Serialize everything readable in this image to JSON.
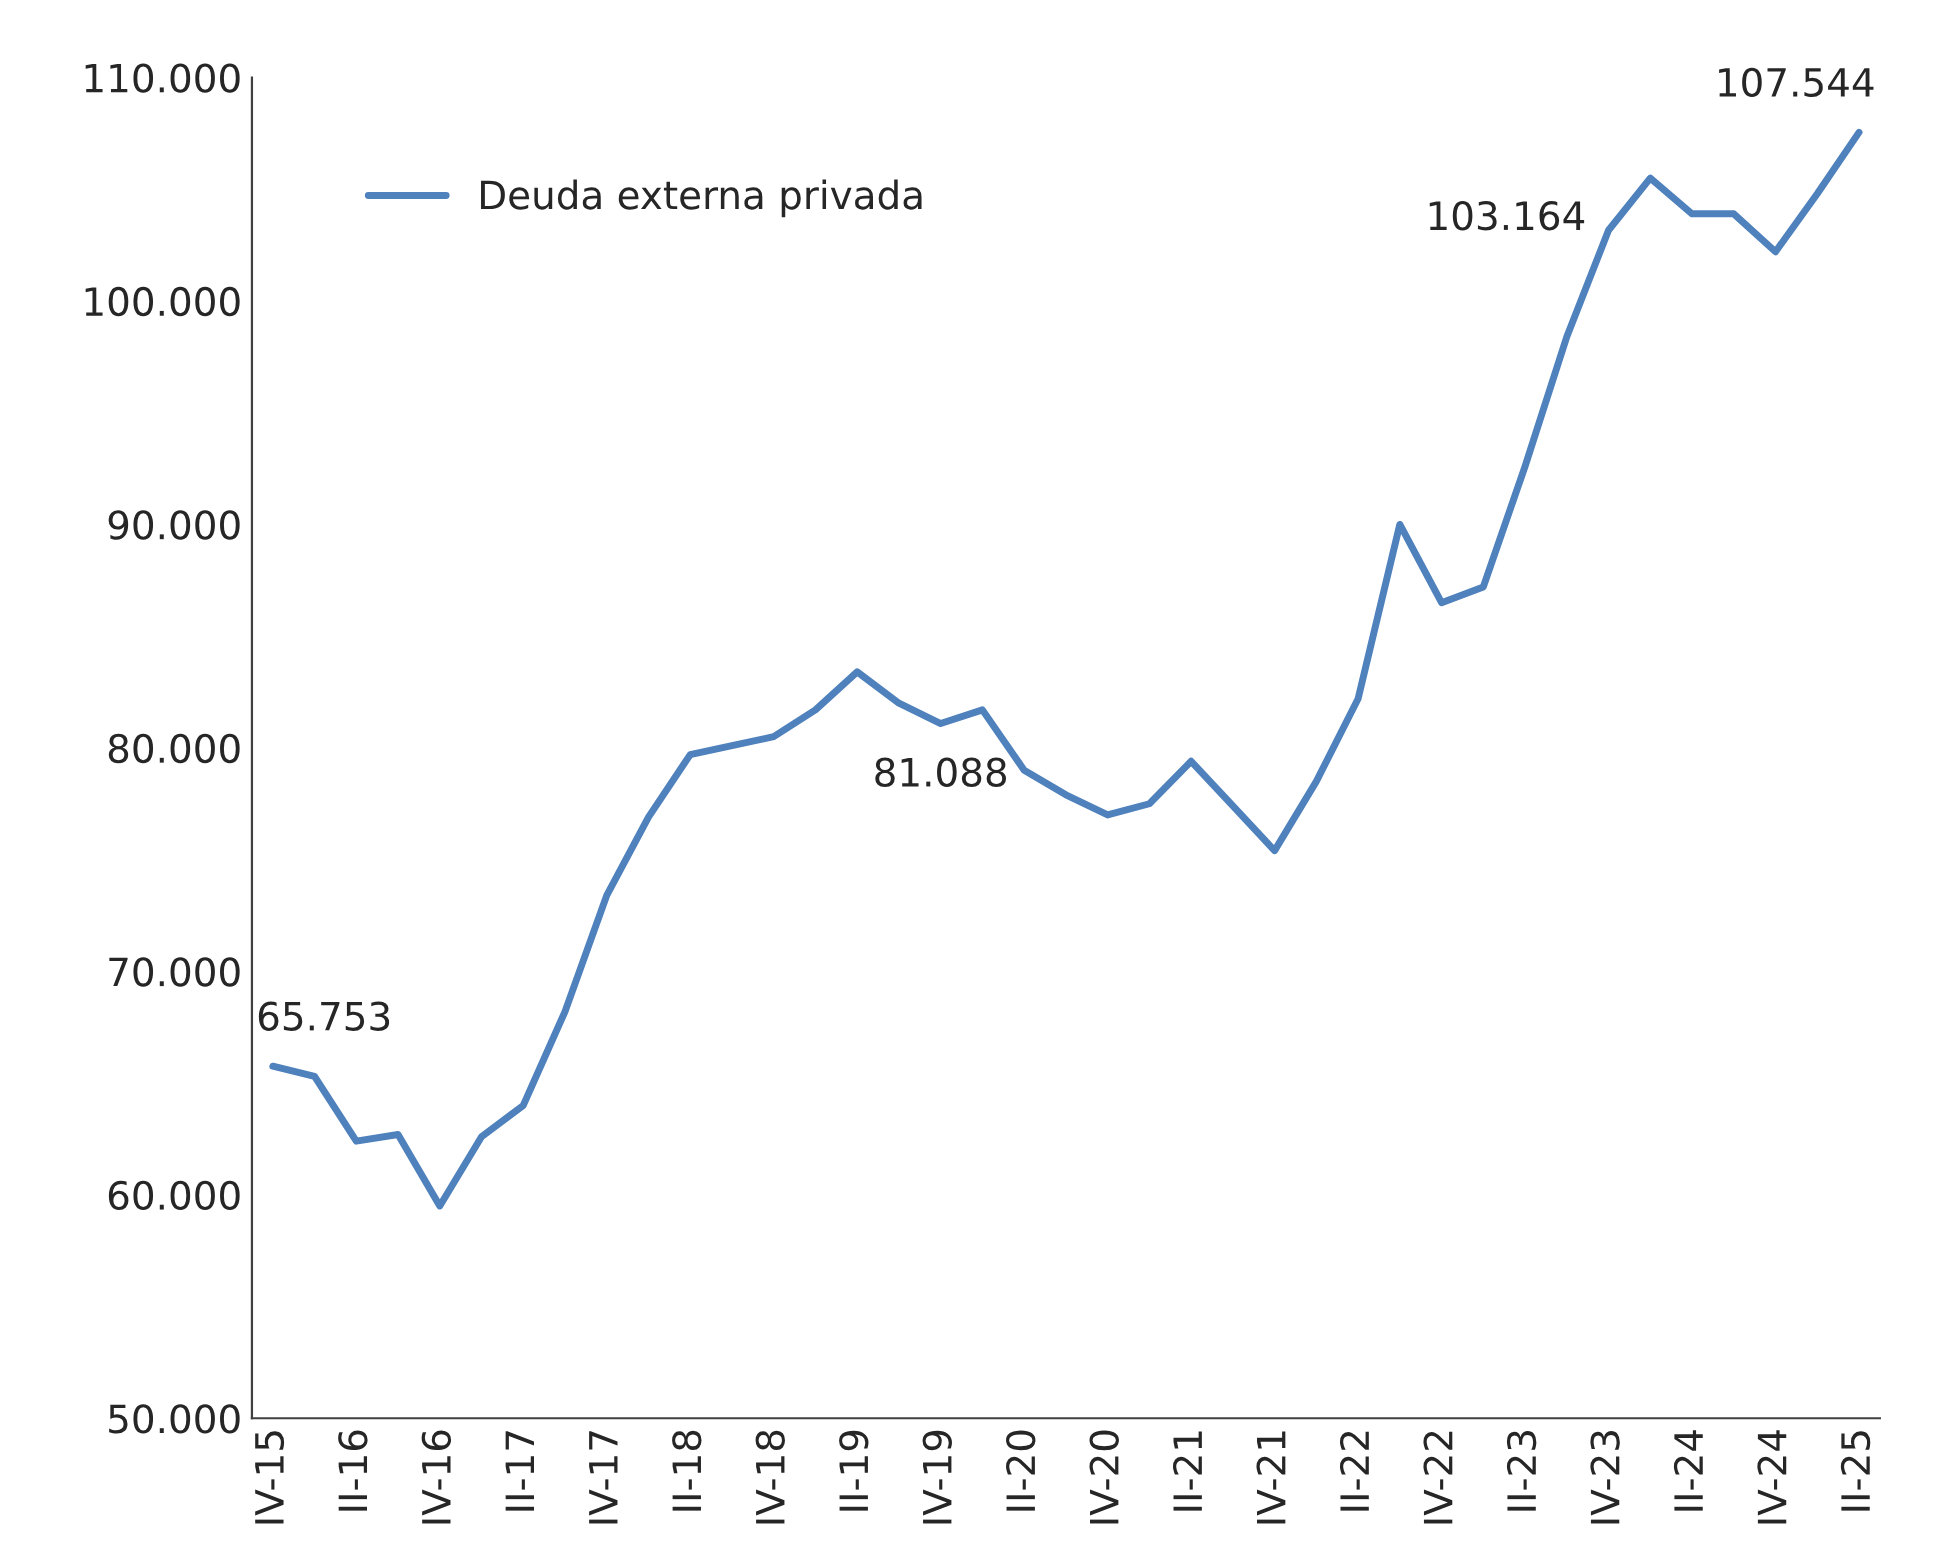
{
  "chart_data": {
    "type": "line",
    "categories": [
      "IV-15",
      null,
      "II-16",
      null,
      "IV-16",
      null,
      "II-17",
      null,
      "IV-17",
      null,
      "II-18",
      null,
      "IV-18",
      null,
      "II-19",
      null,
      "IV-19",
      null,
      "II-20",
      null,
      "IV-20",
      null,
      "II-21",
      null,
      "IV-21",
      null,
      "II-22",
      null,
      "IV-22",
      null,
      "II-23",
      null,
      "IV-23",
      null,
      "II-24",
      null,
      "IV-24",
      null,
      "II-25"
    ],
    "series": [
      {
        "name": "Deuda externa privada",
        "color": "#4f81bd",
        "values": [
          65753,
          65300,
          62400,
          62700,
          59500,
          62600,
          64000,
          68200,
          73400,
          76900,
          79700,
          80100,
          80500,
          81700,
          83400,
          82000,
          81088,
          81700,
          79000,
          77900,
          77000,
          77500,
          79400,
          77400,
          75400,
          78500,
          82200,
          90000,
          86500,
          87200,
          92600,
          98400,
          103164,
          105500,
          103900,
          103900,
          102200,
          104800,
          107544
        ],
        "value_labels": [
          "65.753",
          null,
          null,
          null,
          null,
          null,
          null,
          null,
          null,
          null,
          null,
          null,
          null,
          null,
          null,
          null,
          "81.088",
          null,
          null,
          null,
          null,
          null,
          null,
          null,
          null,
          null,
          null,
          null,
          null,
          null,
          null,
          null,
          "103.164",
          null,
          null,
          null,
          null,
          null,
          "107.544"
        ]
      }
    ],
    "ylim": [
      50000,
      110000
    ],
    "yticks": [
      {
        "value": 50000,
        "label": "50.000"
      },
      {
        "value": 60000,
        "label": "60.000"
      },
      {
        "value": 70000,
        "label": "70.000"
      },
      {
        "value": 80000,
        "label": "80.000"
      },
      {
        "value": 90000,
        "label": "90.000"
      },
      {
        "value": 100000,
        "label": "100.000"
      },
      {
        "value": 110000,
        "label": "110.000"
      }
    ],
    "legend": "top left",
    "grid": false,
    "marker": "none",
    "line_style": "solid"
  }
}
